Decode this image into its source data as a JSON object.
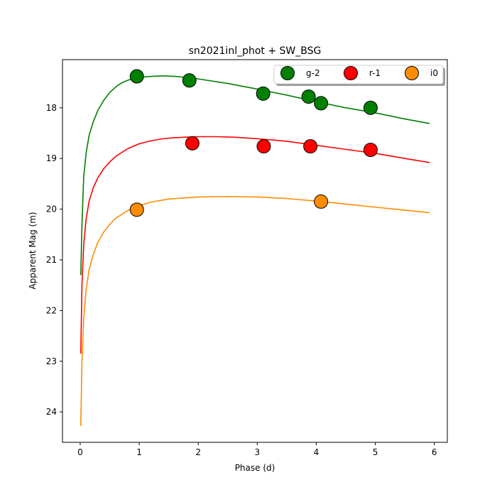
{
  "chart_data": {
    "type": "scatter",
    "title": "sn2021inl_phot + SW_BSG",
    "xlabel": "Phase (d)",
    "ylabel": "Apparent Mag (m)",
    "xlim": [
      -0.3,
      6.22
    ],
    "ylim": [
      24.6,
      17.05
    ],
    "y_inverted": true,
    "x_ticks": [
      0,
      1,
      2,
      3,
      4,
      5,
      6
    ],
    "y_ticks": [
      18,
      19,
      20,
      21,
      22,
      23,
      24
    ],
    "grid": false,
    "legend_placement": "top-right",
    "series": [
      {
        "name": "g-2",
        "color": "#008000",
        "points": [
          {
            "x": 0.96,
            "y": 17.38
          },
          {
            "x": 1.85,
            "y": 17.46
          },
          {
            "x": 3.1,
            "y": 17.72
          },
          {
            "x": 3.87,
            "y": 17.78
          },
          {
            "x": 4.08,
            "y": 17.91
          },
          {
            "x": 4.92,
            "y": 18.0
          }
        ],
        "model": [
          {
            "x": 0.01,
            "y": 21.3
          },
          {
            "x": 0.03,
            "y": 20.3
          },
          {
            "x": 0.06,
            "y": 19.35
          },
          {
            "x": 0.1,
            "y": 18.9
          },
          {
            "x": 0.15,
            "y": 18.55
          },
          {
            "x": 0.22,
            "y": 18.28
          },
          {
            "x": 0.3,
            "y": 18.05
          },
          {
            "x": 0.4,
            "y": 17.85
          },
          {
            "x": 0.5,
            "y": 17.7
          },
          {
            "x": 0.6,
            "y": 17.59
          },
          {
            "x": 0.7,
            "y": 17.51
          },
          {
            "x": 0.8,
            "y": 17.46
          },
          {
            "x": 0.9,
            "y": 17.42
          },
          {
            "x": 1.0,
            "y": 17.4
          },
          {
            "x": 1.2,
            "y": 17.38
          },
          {
            "x": 1.4,
            "y": 17.37
          },
          {
            "x": 1.6,
            "y": 17.38
          },
          {
            "x": 1.8,
            "y": 17.4
          },
          {
            "x": 2.0,
            "y": 17.43
          },
          {
            "x": 2.5,
            "y": 17.52
          },
          {
            "x": 3.0,
            "y": 17.63
          },
          {
            "x": 3.5,
            "y": 17.75
          },
          {
            "x": 4.0,
            "y": 17.88
          },
          {
            "x": 4.5,
            "y": 18.0
          },
          {
            "x": 5.0,
            "y": 18.1
          },
          {
            "x": 5.5,
            "y": 18.22
          },
          {
            "x": 5.92,
            "y": 18.31
          }
        ]
      },
      {
        "name": "r-1",
        "color": "#ff0000",
        "points": [
          {
            "x": 1.9,
            "y": 18.7
          },
          {
            "x": 3.11,
            "y": 18.76
          },
          {
            "x": 3.9,
            "y": 18.76
          },
          {
            "x": 4.92,
            "y": 18.83
          }
        ],
        "model": [
          {
            "x": 0.01,
            "y": 22.85
          },
          {
            "x": 0.03,
            "y": 21.5
          },
          {
            "x": 0.06,
            "y": 20.7
          },
          {
            "x": 0.1,
            "y": 20.2
          },
          {
            "x": 0.15,
            "y": 19.85
          },
          {
            "x": 0.22,
            "y": 19.58
          },
          {
            "x": 0.3,
            "y": 19.38
          },
          {
            "x": 0.4,
            "y": 19.2
          },
          {
            "x": 0.5,
            "y": 19.07
          },
          {
            "x": 0.6,
            "y": 18.96
          },
          {
            "x": 0.8,
            "y": 18.81
          },
          {
            "x": 1.0,
            "y": 18.71
          },
          {
            "x": 1.2,
            "y": 18.65
          },
          {
            "x": 1.4,
            "y": 18.61
          },
          {
            "x": 1.6,
            "y": 18.59
          },
          {
            "x": 1.8,
            "y": 18.58
          },
          {
            "x": 2.0,
            "y": 18.57
          },
          {
            "x": 2.3,
            "y": 18.57
          },
          {
            "x": 2.6,
            "y": 18.58
          },
          {
            "x": 3.0,
            "y": 18.61
          },
          {
            "x": 3.5,
            "y": 18.66
          },
          {
            "x": 4.0,
            "y": 18.74
          },
          {
            "x": 4.5,
            "y": 18.82
          },
          {
            "x": 5.0,
            "y": 18.9
          },
          {
            "x": 5.5,
            "y": 19.0
          },
          {
            "x": 5.92,
            "y": 19.08
          }
        ]
      },
      {
        "name": "i0",
        "color": "#ff8c00",
        "points": [
          {
            "x": 0.96,
            "y": 20.01
          },
          {
            "x": 4.08,
            "y": 19.85
          }
        ],
        "model": [
          {
            "x": 0.01,
            "y": 24.28
          },
          {
            "x": 0.03,
            "y": 23.0
          },
          {
            "x": 0.06,
            "y": 22.15
          },
          {
            "x": 0.1,
            "y": 21.6
          },
          {
            "x": 0.15,
            "y": 21.2
          },
          {
            "x": 0.22,
            "y": 20.9
          },
          {
            "x": 0.3,
            "y": 20.65
          },
          {
            "x": 0.4,
            "y": 20.45
          },
          {
            "x": 0.5,
            "y": 20.3
          },
          {
            "x": 0.6,
            "y": 20.18
          },
          {
            "x": 0.8,
            "y": 20.03
          },
          {
            "x": 1.0,
            "y": 19.93
          },
          {
            "x": 1.2,
            "y": 19.86
          },
          {
            "x": 1.5,
            "y": 19.8
          },
          {
            "x": 2.0,
            "y": 19.76
          },
          {
            "x": 2.5,
            "y": 19.75
          },
          {
            "x": 3.0,
            "y": 19.76
          },
          {
            "x": 3.5,
            "y": 19.79
          },
          {
            "x": 4.0,
            "y": 19.84
          },
          {
            "x": 4.5,
            "y": 19.9
          },
          {
            "x": 5.0,
            "y": 19.96
          },
          {
            "x": 5.5,
            "y": 20.02
          },
          {
            "x": 5.92,
            "y": 20.07
          }
        ]
      }
    ]
  }
}
